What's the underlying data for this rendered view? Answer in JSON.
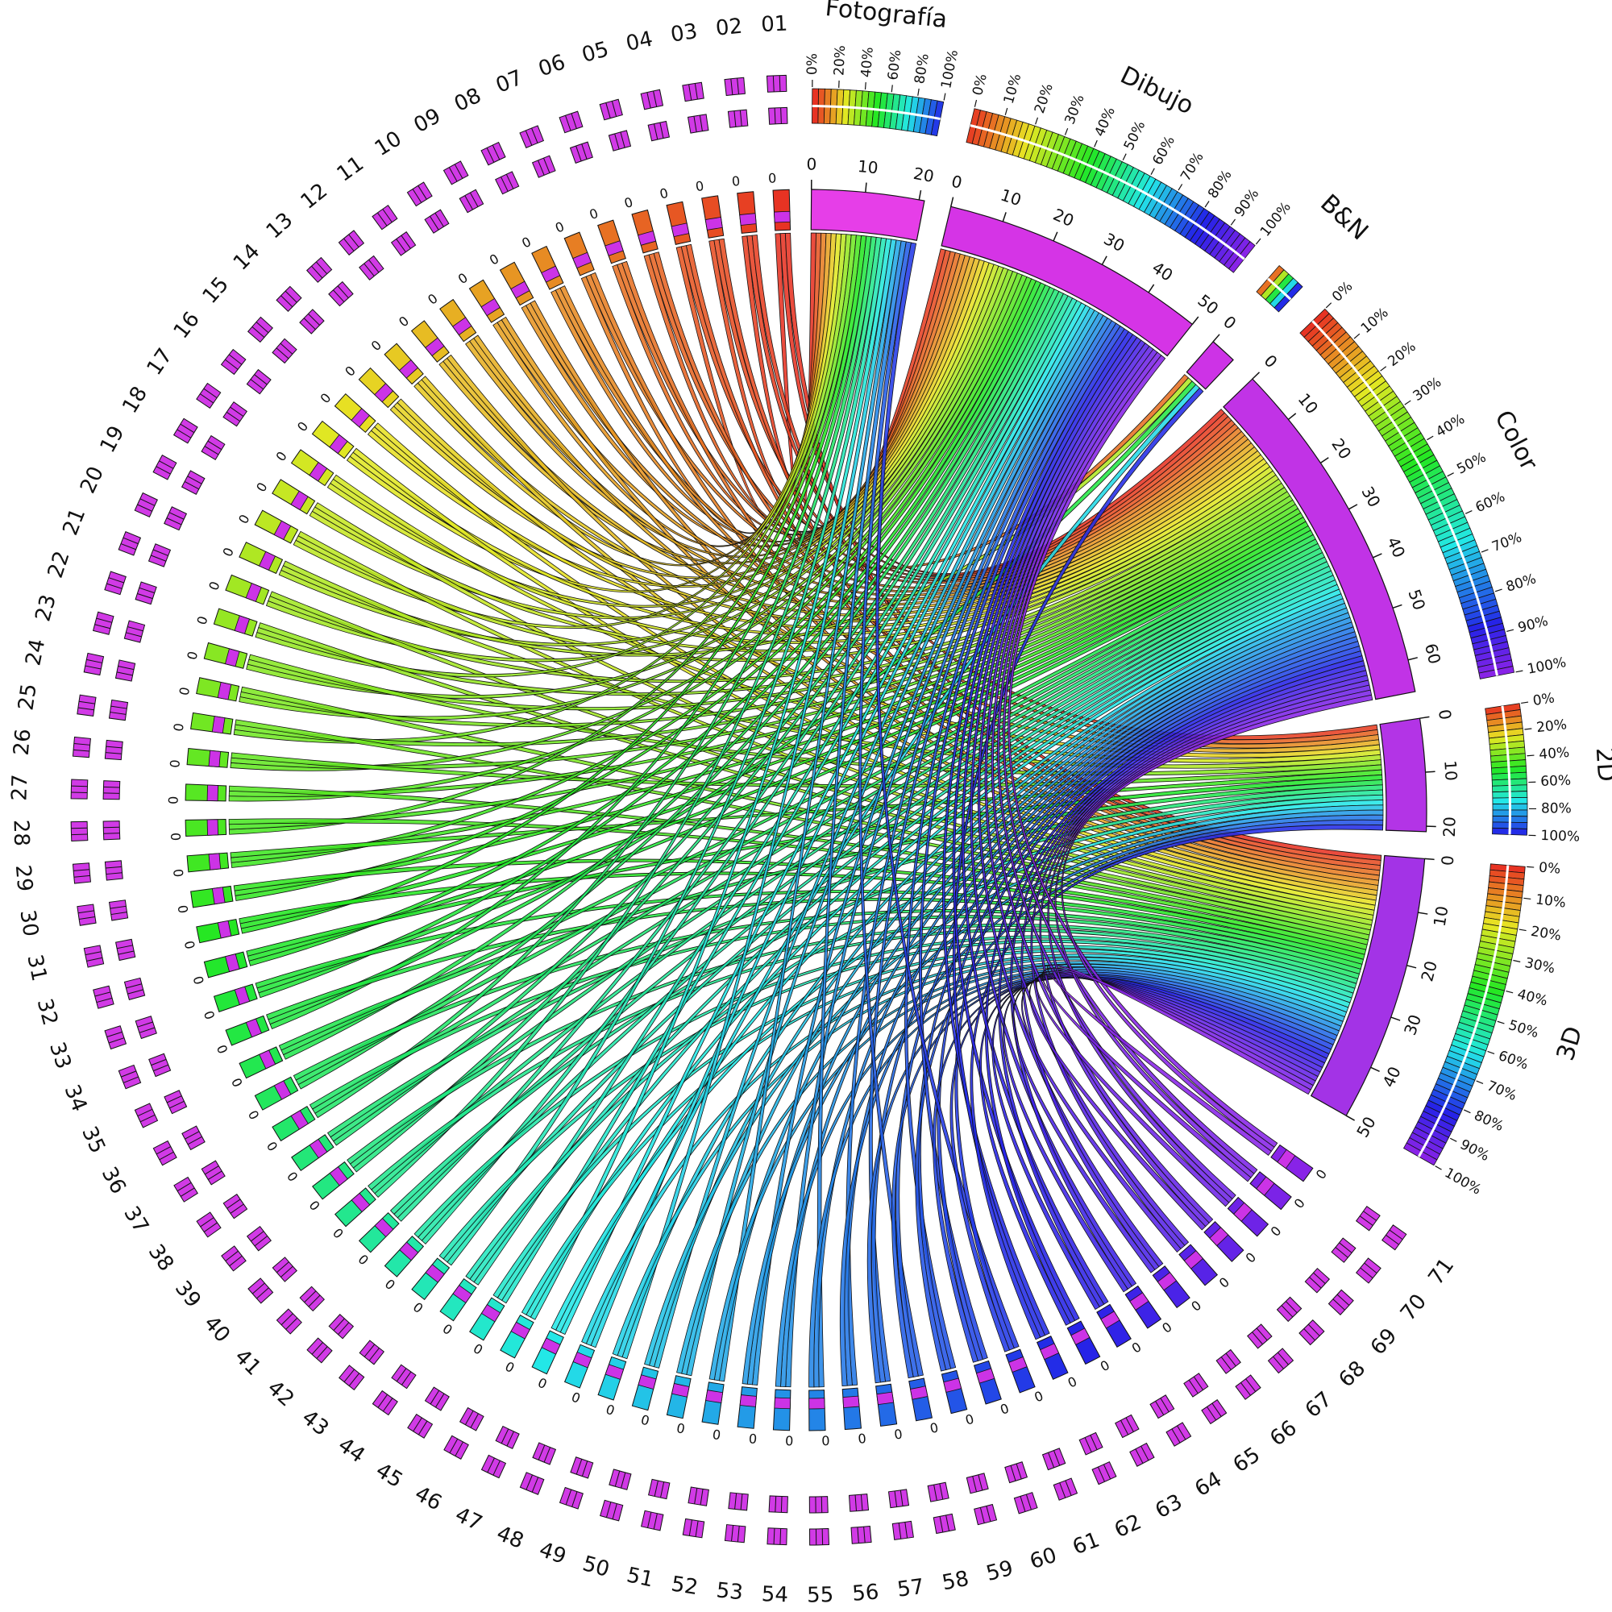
{
  "chart_data": {
    "type": "chord",
    "categories": [
      "Fotografía",
      "Dibujo",
      "B&N",
      "Color",
      "2D",
      "3D"
    ],
    "values": [
      21,
      50,
      5,
      66,
      21,
      50
    ],
    "category_colors": [
      "#e63ee8",
      "#d534e6",
      "#cd33e6",
      "#c133e6",
      "#b334e6",
      "#a333e6"
    ],
    "ticks": [
      [
        0,
        10,
        20
      ],
      [
        0,
        10,
        20,
        30,
        40,
        50
      ],
      [
        0
      ],
      [
        0,
        10,
        20,
        30,
        40,
        50,
        60
      ],
      [
        0,
        10,
        20
      ],
      [
        0,
        10,
        20,
        30,
        40,
        50
      ]
    ],
    "percent_ticks": [
      [
        {
          "value": 0,
          "label": "0%"
        },
        {
          "value": 20,
          "label": "20%"
        },
        {
          "value": 40,
          "label": "40%"
        },
        {
          "value": 60,
          "label": "60%"
        },
        {
          "value": 80,
          "label": "80%"
        },
        {
          "value": 100,
          "label": "100%"
        }
      ],
      [
        {
          "value": 0,
          "label": "0%"
        },
        {
          "value": 10,
          "label": "10%"
        },
        {
          "value": 20,
          "label": "20%"
        },
        {
          "value": 30,
          "label": "30%"
        },
        {
          "value": 40,
          "label": "40%"
        },
        {
          "value": 50,
          "label": "50%"
        },
        {
          "value": 60,
          "label": "60%"
        },
        {
          "value": 70,
          "label": "70%"
        },
        {
          "value": 80,
          "label": "80%"
        },
        {
          "value": 90,
          "label": "90%"
        },
        {
          "value": 100,
          "label": "100%"
        }
      ],
      [],
      [
        {
          "value": 0,
          "label": "0%"
        },
        {
          "value": 10,
          "label": "10%"
        },
        {
          "value": 20,
          "label": "20%"
        },
        {
          "value": 30,
          "label": "30%"
        },
        {
          "value": 40,
          "label": "40%"
        },
        {
          "value": 50,
          "label": "50%"
        },
        {
          "value": 60,
          "label": "60%"
        },
        {
          "value": 70,
          "label": "70%"
        },
        {
          "value": 80,
          "label": "80%"
        },
        {
          "value": 90,
          "label": "90%"
        },
        {
          "value": 100,
          "label": "100%"
        }
      ],
      [
        {
          "value": 0,
          "label": "0%"
        },
        {
          "value": 20,
          "label": "20%"
        },
        {
          "value": 40,
          "label": "40%"
        },
        {
          "value": 60,
          "label": "60%"
        },
        {
          "value": 80,
          "label": "80%"
        },
        {
          "value": 100,
          "label": "100%"
        }
      ],
      [
        {
          "value": 0,
          "label": "0%"
        },
        {
          "value": 10,
          "label": "10%"
        },
        {
          "value": 20,
          "label": "20%"
        },
        {
          "value": 30,
          "label": "30%"
        },
        {
          "value": 40,
          "label": "40%"
        },
        {
          "value": 50,
          "label": "50%"
        },
        {
          "value": 60,
          "label": "60%"
        },
        {
          "value": 70,
          "label": "70%"
        },
        {
          "value": 80,
          "label": "80%"
        },
        {
          "value": 90,
          "label": "90%"
        },
        {
          "value": 100,
          "label": "100%"
        }
      ]
    ],
    "items": [
      "01",
      "02",
      "03",
      "04",
      "05",
      "06",
      "07",
      "08",
      "09",
      "10",
      "11",
      "12",
      "13",
      "14",
      "15",
      "16",
      "17",
      "18",
      "19",
      "20",
      "21",
      "22",
      "23",
      "24",
      "25",
      "26",
      "27",
      "28",
      "29",
      "30",
      "31",
      "32",
      "33",
      "34",
      "35",
      "36",
      "37",
      "38",
      "39",
      "40",
      "41",
      "42",
      "43",
      "44",
      "45",
      "46",
      "47",
      "48",
      "49",
      "50",
      "51",
      "52",
      "53",
      "54",
      "55",
      "56",
      "57",
      "58",
      "59",
      "60",
      "61",
      "62",
      "63",
      "64",
      "65",
      "66",
      "67",
      "68",
      "69",
      "70",
      "71"
    ],
    "item_ticks": [
      0
    ],
    "item_colors": [
      "hsl(5,80%,52%)",
      "hsl(9,80%,52%)",
      "hsl(13,80%,52%)",
      "hsl(16,80%,52%)",
      "hsl(20,80%,52%)",
      "hsl(24,80%,52%)",
      "hsl(28,80%,52%)",
      "hsl(32,80%,52%)",
      "hsl(35,80%,52%)",
      "hsl(39,80%,52%)",
      "hsl(43,80%,52%)",
      "hsl(47,80%,52%)",
      "hsl(51,80%,52%)",
      "hsl(54,80%,52%)",
      "hsl(58,80%,52%)",
      "hsl(62,80%,52%)",
      "hsl(66,80%,52%)",
      "hsl(70,80%,52%)",
      "hsl(73,80%,52%)",
      "hsl(77,80%,52%)",
      "hsl(81,80%,52%)",
      "hsl(85,80%,52%)",
      "hsl(89,80%,52%)",
      "hsl(92,80%,52%)",
      "hsl(96,80%,52%)",
      "hsl(100,80%,52%)",
      "hsl(104,80%,52%)",
      "hsl(108,80%,52%)",
      "hsl(111,80%,52%)",
      "hsl(115,80%,52%)",
      "hsl(119,80%,52%)",
      "hsl(123,80%,52%)",
      "hsl(127,80%,52%)",
      "hsl(130,80%,52%)",
      "hsl(134,80%,52%)",
      "hsl(138,80%,52%)",
      "hsl(142,80%,52%)",
      "hsl(146,80%,52%)",
      "hsl(149,80%,52%)",
      "hsl(153,80%,52%)",
      "hsl(157,80%,52%)",
      "hsl(161,80%,52%)",
      "hsl(165,80%,52%)",
      "hsl(168,80%,52%)",
      "hsl(172,80%,52%)",
      "hsl(176,80%,52%)",
      "hsl(180,80%,52%)",
      "hsl(184,80%,52%)",
      "hsl(187,80%,52%)",
      "hsl(191,80%,52%)",
      "hsl(195,80%,52%)",
      "hsl(199,80%,52%)",
      "hsl(203,80%,52%)",
      "hsl(206,80%,52%)",
      "hsl(210,80%,52%)",
      "hsl(214,80%,52%)",
      "hsl(218,80%,52%)",
      "hsl(222,80%,52%)",
      "hsl(225,80%,52%)",
      "hsl(229,80%,52%)",
      "hsl(233,80%,52%)",
      "hsl(237,80%,52%)",
      "hsl(241,80%,52%)",
      "hsl(244,80%,52%)",
      "hsl(248,80%,52%)",
      "hsl(252,80%,52%)",
      "hsl(256,80%,52%)",
      "hsl(260,80%,52%)",
      "hsl(263,80%,52%)",
      "hsl(267,80%,52%)",
      "hsl(271,80%,52%)"
    ],
    "matrix": [
      [
        1,
        0,
        0,
        1,
        0,
        1
      ],
      [
        0,
        1,
        0,
        1,
        1,
        0
      ],
      [
        0,
        1,
        0,
        1,
        0,
        1
      ],
      [
        1,
        0,
        0,
        1,
        0,
        1
      ],
      [
        0,
        1,
        0,
        1,
        1,
        0
      ],
      [
        0,
        1,
        1,
        0,
        0,
        1
      ],
      [
        1,
        0,
        0,
        1,
        0,
        1
      ],
      [
        0,
        1,
        0,
        1,
        1,
        0
      ],
      [
        0,
        1,
        0,
        1,
        0,
        1
      ],
      [
        1,
        0,
        0,
        1,
        0,
        1
      ],
      [
        0,
        1,
        0,
        1,
        1,
        0
      ],
      [
        0,
        1,
        0,
        1,
        0,
        1
      ],
      [
        1,
        0,
        0,
        1,
        0,
        1
      ],
      [
        0,
        1,
        0,
        1,
        1,
        0
      ],
      [
        0,
        1,
        0,
        1,
        0,
        1
      ],
      [
        1,
        0,
        0,
        1,
        0,
        1
      ],
      [
        0,
        1,
        0,
        1,
        1,
        0
      ],
      [
        0,
        1,
        0,
        1,
        0,
        1
      ],
      [
        1,
        0,
        0,
        1,
        0,
        1
      ],
      [
        0,
        1,
        1,
        0,
        1,
        0
      ],
      [
        0,
        1,
        0,
        1,
        0,
        1
      ],
      [
        1,
        0,
        0,
        1,
        0,
        1
      ],
      [
        0,
        1,
        0,
        1,
        1,
        0
      ],
      [
        0,
        1,
        0,
        1,
        0,
        1
      ],
      [
        1,
        0,
        0,
        1,
        0,
        1
      ],
      [
        0,
        1,
        0,
        1,
        1,
        0
      ],
      [
        0,
        1,
        0,
        1,
        0,
        1
      ],
      [
        1,
        0,
        0,
        1,
        0,
        1
      ],
      [
        0,
        1,
        0,
        1,
        1,
        0
      ],
      [
        0,
        1,
        0,
        1,
        0,
        1
      ],
      [
        1,
        0,
        0,
        1,
        0,
        1
      ],
      [
        0,
        1,
        0,
        1,
        1,
        0
      ],
      [
        0,
        1,
        0,
        1,
        0,
        1
      ],
      [
        1,
        0,
        1,
        0,
        0,
        1
      ],
      [
        0,
        1,
        0,
        1,
        1,
        0
      ],
      [
        0,
        1,
        0,
        1,
        0,
        1
      ],
      [
        1,
        0,
        0,
        1,
        0,
        1
      ],
      [
        0,
        1,
        0,
        1,
        1,
        0
      ],
      [
        0,
        1,
        0,
        1,
        0,
        1
      ],
      [
        1,
        0,
        0,
        1,
        0,
        1
      ],
      [
        0,
        1,
        0,
        1,
        1,
        0
      ],
      [
        0,
        1,
        0,
        1,
        0,
        1
      ],
      [
        1,
        0,
        0,
        1,
        0,
        1
      ],
      [
        0,
        1,
        0,
        1,
        1,
        0
      ],
      [
        0,
        1,
        0,
        1,
        0,
        1
      ],
      [
        1,
        0,
        0,
        1,
        0,
        1
      ],
      [
        0,
        1,
        0,
        1,
        1,
        0
      ],
      [
        0,
        1,
        1,
        0,
        0,
        1
      ],
      [
        1,
        0,
        0,
        1,
        0,
        1
      ],
      [
        0,
        1,
        0,
        1,
        1,
        0
      ],
      [
        0,
        1,
        0,
        1,
        0,
        1
      ],
      [
        1,
        0,
        0,
        1,
        0,
        1
      ],
      [
        0,
        1,
        0,
        1,
        1,
        0
      ],
      [
        0,
        1,
        0,
        1,
        0,
        1
      ],
      [
        1,
        0,
        0,
        1,
        0,
        1
      ],
      [
        0,
        1,
        0,
        1,
        1,
        0
      ],
      [
        0,
        1,
        0,
        1,
        0,
        1
      ],
      [
        1,
        0,
        0,
        1,
        0,
        1
      ],
      [
        0,
        1,
        0,
        1,
        1,
        0
      ],
      [
        0,
        1,
        0,
        1,
        0,
        1
      ],
      [
        1,
        0,
        0,
        1,
        0,
        1
      ],
      [
        0,
        1,
        1,
        0,
        1,
        0
      ],
      [
        0,
        1,
        0,
        1,
        0,
        1
      ],
      [
        0,
        1,
        0,
        1,
        0,
        1
      ],
      [
        0,
        1,
        0,
        1,
        0,
        1
      ],
      [
        0,
        1,
        0,
        1,
        0,
        1
      ],
      [
        0,
        1,
        0,
        1,
        0,
        1
      ],
      [
        0,
        1,
        0,
        1,
        0,
        1
      ],
      [
        0,
        1,
        0,
        1,
        0,
        1
      ],
      [
        0,
        1,
        0,
        1,
        0,
        1
      ],
      [
        0,
        1,
        0,
        1,
        0,
        1
      ]
    ]
  }
}
